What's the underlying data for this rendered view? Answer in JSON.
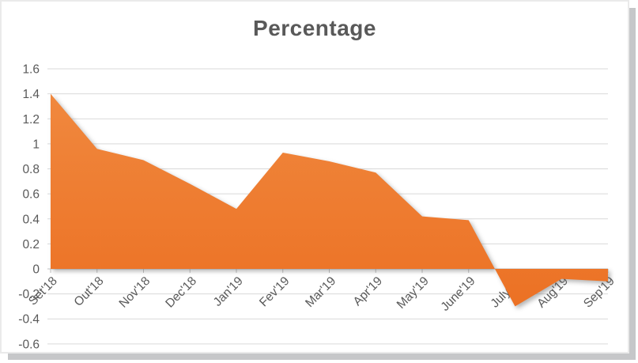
{
  "chart_data": {
    "type": "area",
    "title": "Percentage",
    "categories": [
      "Set'18",
      "Out'18",
      "Nov'18",
      "Dec'18",
      "Jan'19",
      "Fev'19",
      "Mar'19",
      "Apr'19",
      "May'19",
      "June'19",
      "July'19",
      "Aug'19",
      "Sep'19"
    ],
    "series": [
      {
        "name": "Percentage",
        "values": [
          1.4,
          0.96,
          0.87,
          0.68,
          0.48,
          0.93,
          0.86,
          0.77,
          0.42,
          0.39,
          -0.3,
          -0.08,
          -0.1
        ]
      }
    ],
    "xlabel": "",
    "ylabel": "",
    "ylim": [
      -0.6,
      1.6
    ],
    "y_ticks": [
      1.6,
      1.4,
      1.2,
      1,
      0.8,
      0.6,
      0.4,
      0.2,
      0,
      -0.2,
      -0.4,
      -0.6
    ],
    "y_tick_labels": [
      "1.6",
      "1.4",
      "1.2",
      "1",
      "0.8",
      "0.6",
      "0.4",
      "0.2",
      "0",
      "-0.2",
      "-0.4",
      "-0.6"
    ],
    "x_labels_rotation_deg": -45,
    "grid": true,
    "legend": false,
    "colors": {
      "area_gradient_top": "#F0883E",
      "area_gradient_bottom": "#EC7124",
      "gridline": "#D9D9D9",
      "axis_line": "#C0C0C0",
      "tick_mark": "#BFBFBF",
      "axis_label_text": "#595959",
      "title_text": "#595959",
      "card_border": "#EAEAEA",
      "card_shadow": "#C6C7C9"
    }
  }
}
